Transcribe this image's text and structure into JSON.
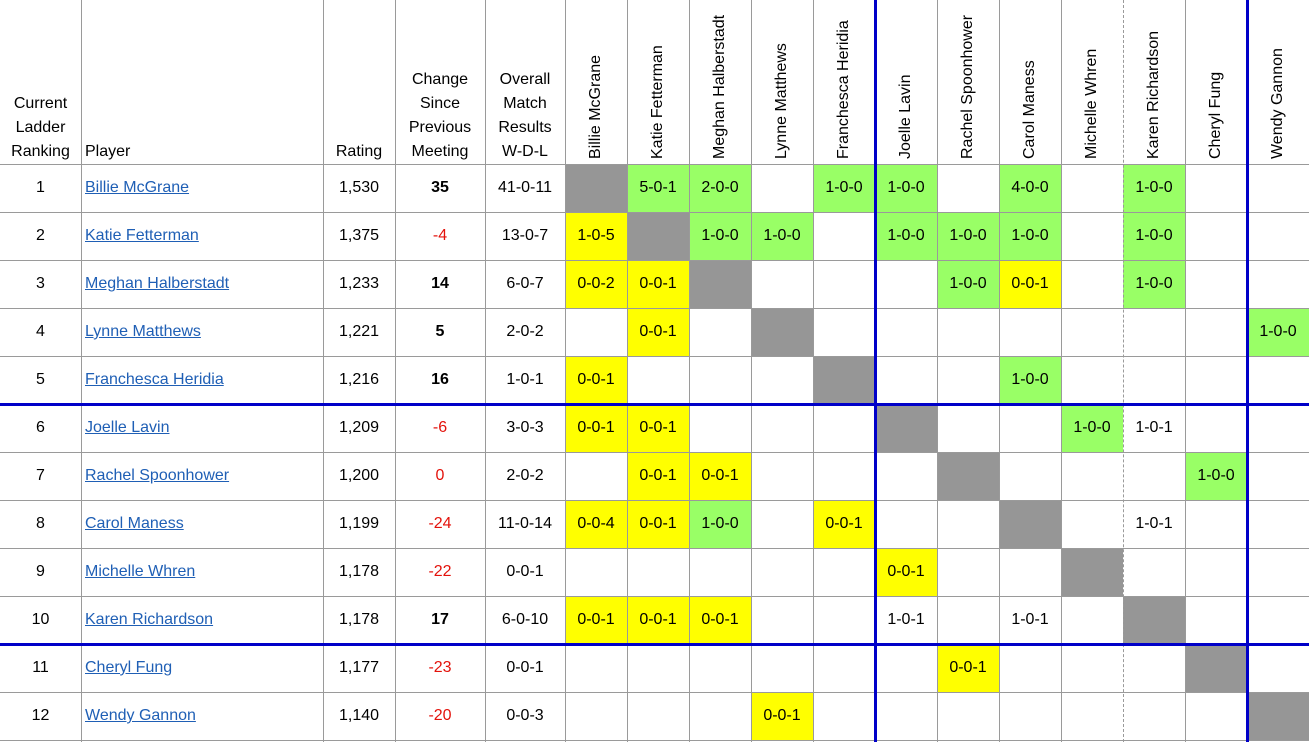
{
  "headers": {
    "ranking": [
      "Current",
      "Ladder",
      "Ranking"
    ],
    "player": "Player",
    "rating": "Rating",
    "change": [
      "Change",
      "Since",
      "Previous",
      "Meeting"
    ],
    "overall": [
      "Overall",
      "Match",
      "Results",
      "W-D-L"
    ]
  },
  "colors": {
    "win": "#99ff66",
    "loss": "#ffff00",
    "self": "#969696",
    "divider": "#0000c8",
    "link": "#1f5fb5",
    "negative": "#e3120b"
  },
  "players": [
    {
      "rank": "1",
      "name": "Billie McGrane",
      "rating": "1,530",
      "change": "35",
      "change_style": "bold",
      "overall": "41-0-11"
    },
    {
      "rank": "2",
      "name": "Katie Fetterman",
      "rating": "1,375",
      "change": "-4",
      "change_style": "neg",
      "overall": "13-0-7"
    },
    {
      "rank": "3",
      "name": "Meghan Halberstadt",
      "rating": "1,233",
      "change": "14",
      "change_style": "bold",
      "overall": "6-0-7"
    },
    {
      "rank": "4",
      "name": "Lynne Matthews",
      "rating": "1,221",
      "change": "5",
      "change_style": "bold",
      "overall": "2-0-2"
    },
    {
      "rank": "5",
      "name": "Franchesca Heridia",
      "rating": "1,216",
      "change": "16",
      "change_style": "bold",
      "overall": "1-0-1"
    },
    {
      "rank": "6",
      "name": "Joelle Lavin",
      "rating": "1,209",
      "change": "-6",
      "change_style": "neg",
      "overall": "3-0-3"
    },
    {
      "rank": "7",
      "name": "Rachel Spoonhower",
      "rating": "1,200",
      "change": "0",
      "change_style": "neg",
      "overall": "2-0-2"
    },
    {
      "rank": "8",
      "name": "Carol Maness",
      "rating": "1,199",
      "change": "-24",
      "change_style": "neg",
      "overall": "11-0-14"
    },
    {
      "rank": "9",
      "name": "Michelle Whren",
      "rating": "1,178",
      "change": "-22",
      "change_style": "neg",
      "overall": "0-0-1"
    },
    {
      "rank": "10",
      "name": "Karen Richardson",
      "rating": "1,178",
      "change": "17",
      "change_style": "bold",
      "overall": "6-0-10"
    },
    {
      "rank": "11",
      "name": "Cheryl Fung",
      "rating": "1,177",
      "change": "-23",
      "change_style": "neg",
      "overall": "0-0-1"
    },
    {
      "rank": "12",
      "name": "Wendy Gannon",
      "rating": "1,140",
      "change": "-20",
      "change_style": "neg",
      "overall": "0-0-3"
    }
  ],
  "matrix": [
    [
      {
        "self": true
      },
      {
        "v": "5-0-1",
        "c": "win"
      },
      {
        "v": "2-0-0",
        "c": "win"
      },
      {},
      {
        "v": "1-0-0",
        "c": "win"
      },
      {
        "v": "1-0-0",
        "c": "win"
      },
      {},
      {
        "v": "4-0-0",
        "c": "win"
      },
      {},
      {
        "v": "1-0-0",
        "c": "win"
      },
      {},
      {}
    ],
    [
      {
        "v": "1-0-5",
        "c": "loss"
      },
      {
        "self": true
      },
      {
        "v": "1-0-0",
        "c": "win"
      },
      {
        "v": "1-0-0",
        "c": "win"
      },
      {},
      {
        "v": "1-0-0",
        "c": "win"
      },
      {
        "v": "1-0-0",
        "c": "win"
      },
      {
        "v": "1-0-0",
        "c": "win"
      },
      {},
      {
        "v": "1-0-0",
        "c": "win"
      },
      {},
      {}
    ],
    [
      {
        "v": "0-0-2",
        "c": "loss"
      },
      {
        "v": "0-0-1",
        "c": "loss"
      },
      {
        "self": true
      },
      {},
      {},
      {},
      {
        "v": "1-0-0",
        "c": "win"
      },
      {
        "v": "0-0-1",
        "c": "loss"
      },
      {},
      {
        "v": "1-0-0",
        "c": "win"
      },
      {},
      {}
    ],
    [
      {},
      {
        "v": "0-0-1",
        "c": "loss"
      },
      {},
      {
        "self": true
      },
      {},
      {},
      {},
      {},
      {},
      {},
      {},
      {
        "v": "1-0-0",
        "c": "win"
      }
    ],
    [
      {
        "v": "0-0-1",
        "c": "loss"
      },
      {},
      {},
      {},
      {
        "self": true
      },
      {},
      {},
      {
        "v": "1-0-0",
        "c": "win"
      },
      {},
      {},
      {},
      {}
    ],
    [
      {
        "v": "0-0-1",
        "c": "loss"
      },
      {
        "v": "0-0-1",
        "c": "loss"
      },
      {},
      {},
      {},
      {
        "self": true
      },
      {},
      {},
      {
        "v": "1-0-0",
        "c": "win"
      },
      {
        "v": "1-0-1"
      },
      {},
      {}
    ],
    [
      {},
      {
        "v": "0-0-1",
        "c": "loss"
      },
      {
        "v": "0-0-1",
        "c": "loss"
      },
      {},
      {},
      {},
      {
        "self": true
      },
      {},
      {},
      {},
      {
        "v": "1-0-0",
        "c": "win"
      },
      {}
    ],
    [
      {
        "v": "0-0-4",
        "c": "loss"
      },
      {
        "v": "0-0-1",
        "c": "loss"
      },
      {
        "v": "1-0-0",
        "c": "win"
      },
      {},
      {
        "v": "0-0-1",
        "c": "loss"
      },
      {},
      {},
      {
        "self": true
      },
      {},
      {
        "v": "1-0-1"
      },
      {},
      {}
    ],
    [
      {},
      {},
      {},
      {},
      {},
      {
        "v": "0-0-1",
        "c": "loss"
      },
      {},
      {},
      {
        "self": true
      },
      {},
      {},
      {}
    ],
    [
      {
        "v": "0-0-1",
        "c": "loss"
      },
      {
        "v": "0-0-1",
        "c": "loss"
      },
      {
        "v": "0-0-1",
        "c": "loss"
      },
      {},
      {},
      {
        "v": "1-0-1"
      },
      {},
      {
        "v": "1-0-1"
      },
      {},
      {
        "self": true
      },
      {},
      {}
    ],
    [
      {},
      {},
      {},
      {},
      {},
      {},
      {
        "v": "0-0-1",
        "c": "loss"
      },
      {},
      {},
      {},
      {
        "self": true
      },
      {}
    ],
    [
      {},
      {},
      {},
      {
        "v": "0-0-1",
        "c": "loss"
      },
      {},
      {},
      {},
      {},
      {},
      {},
      {},
      {
        "self": true
      }
    ]
  ]
}
